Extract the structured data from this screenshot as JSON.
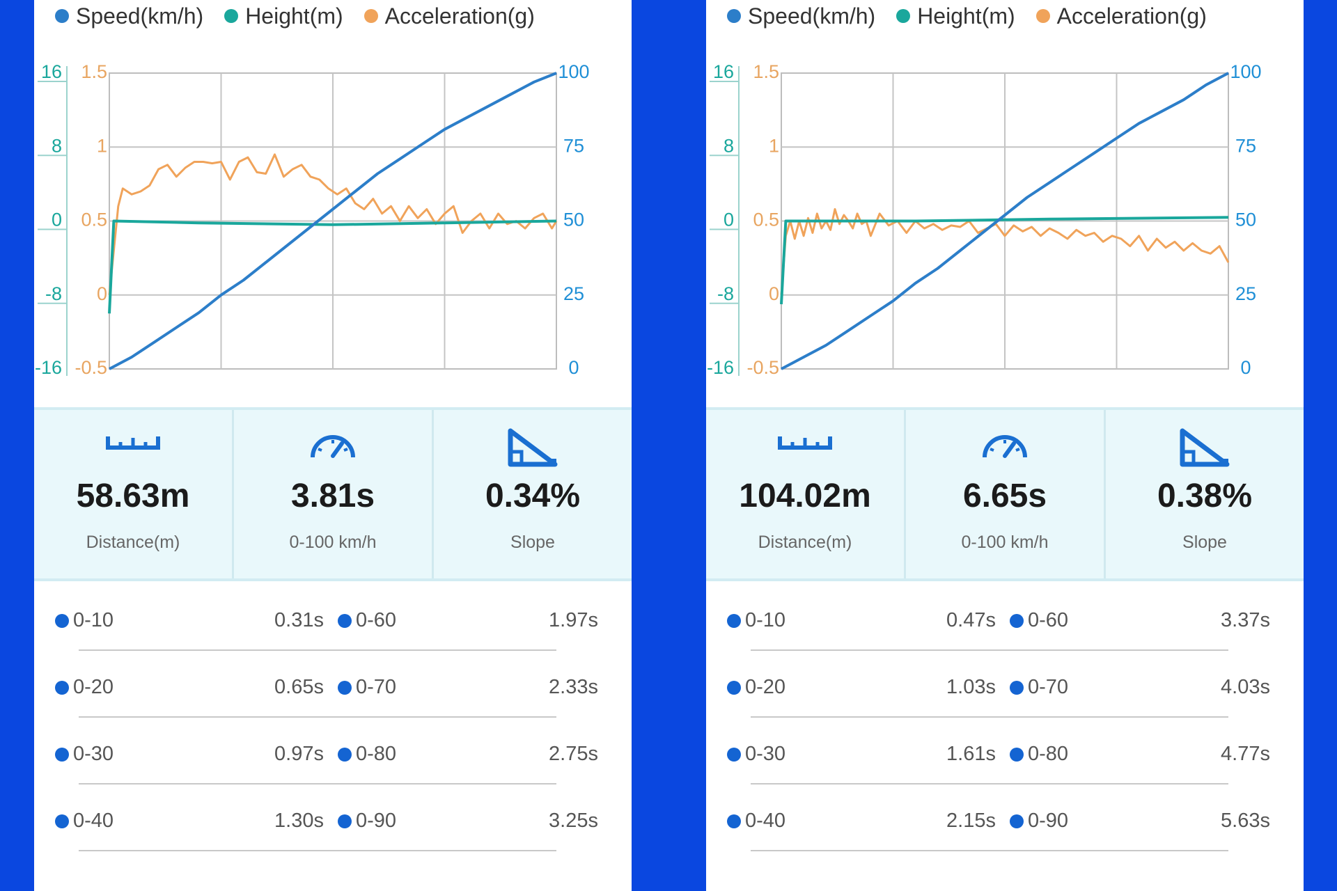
{
  "colors": {
    "speed": "#2c7ec9",
    "height": "#1aa79c",
    "acceleration": "#f0a35a",
    "axis_left_height": "#1aa79c",
    "axis_left_accel": "#e8a561",
    "axis_right_speed": "#1f8fd6",
    "split_dot": "#1464d2",
    "icon": "#1a6fd1"
  },
  "panels": [
    {
      "legend": {
        "speed": "Speed(km/h)",
        "height": "Height(m)",
        "acceleration": "Acceleration(g)"
      },
      "chart_data": {
        "type": "line",
        "title": "",
        "axes": {
          "height_ticks": [
            "16",
            "8",
            "0",
            "-8",
            "-16"
          ],
          "accel_ticks": [
            "1.5",
            "1",
            "0.5",
            "0",
            "-0.5"
          ],
          "speed_ticks": [
            "100",
            "75",
            "50",
            "25",
            "0"
          ],
          "height_range": [
            -16,
            16
          ],
          "accel_range": [
            -0.5,
            1.5
          ],
          "speed_range": [
            0,
            100
          ]
        },
        "grid": true,
        "series": [
          {
            "name": "Speed(km/h)",
            "axis": "right",
            "x": [
              0,
              0.05,
              0.1,
              0.15,
              0.2,
              0.25,
              0.3,
              0.35,
              0.4,
              0.45,
              0.5,
              0.55,
              0.6,
              0.65,
              0.7,
              0.75,
              0.8,
              0.85,
              0.9,
              0.95,
              1.0
            ],
            "values": [
              0,
              4,
              9,
              14,
              19,
              25,
              30,
              36,
              42,
              48,
              54,
              60,
              66,
              71,
              76,
              81,
              85,
              89,
              93,
              97,
              100
            ]
          },
          {
            "name": "Height(m)",
            "axis": "left-height",
            "x": [
              0,
              0.01,
              0.2,
              0.5,
              0.75,
              1.0
            ],
            "values": [
              -10,
              0,
              -0.2,
              -0.4,
              -0.2,
              0
            ]
          },
          {
            "name": "Acceleration(g)",
            "axis": "left-accel",
            "x": [
              0,
              0.01,
              0.02,
              0.03,
              0.05,
              0.07,
              0.09,
              0.11,
              0.13,
              0.15,
              0.17,
              0.19,
              0.21,
              0.23,
              0.25,
              0.27,
              0.29,
              0.31,
              0.33,
              0.35,
              0.37,
              0.39,
              0.41,
              0.43,
              0.45,
              0.47,
              0.49,
              0.51,
              0.53,
              0.55,
              0.57,
              0.59,
              0.61,
              0.63,
              0.65,
              0.67,
              0.69,
              0.71,
              0.73,
              0.75,
              0.77,
              0.79,
              0.81,
              0.83,
              0.85,
              0.87,
              0.89,
              0.91,
              0.93,
              0.95,
              0.97,
              0.99,
              1.0
            ],
            "values": [
              0,
              0.3,
              0.6,
              0.72,
              0.68,
              0.7,
              0.74,
              0.85,
              0.88,
              0.8,
              0.86,
              0.9,
              0.9,
              0.89,
              0.9,
              0.78,
              0.9,
              0.93,
              0.83,
              0.82,
              0.95,
              0.8,
              0.85,
              0.88,
              0.8,
              0.78,
              0.72,
              0.68,
              0.72,
              0.62,
              0.58,
              0.65,
              0.55,
              0.6,
              0.5,
              0.6,
              0.52,
              0.58,
              0.48,
              0.55,
              0.6,
              0.42,
              0.5,
              0.55,
              0.45,
              0.55,
              0.48,
              0.5,
              0.45,
              0.52,
              0.55,
              0.45,
              0.5
            ]
          }
        ]
      },
      "stats": [
        {
          "icon": "ruler-icon",
          "value": "58.63m",
          "label": "Distance(m)"
        },
        {
          "icon": "speedometer-icon",
          "value": "3.81s",
          "label": "0-100 km/h"
        },
        {
          "icon": "slope-icon",
          "value": "0.34%",
          "label": "Slope"
        }
      ],
      "splits": [
        {
          "a_range": "0-10",
          "a_time": "0.31s",
          "b_range": "0-60",
          "b_time": "1.97s"
        },
        {
          "a_range": "0-20",
          "a_time": "0.65s",
          "b_range": "0-70",
          "b_time": "2.33s"
        },
        {
          "a_range": "0-30",
          "a_time": "0.97s",
          "b_range": "0-80",
          "b_time": "2.75s"
        },
        {
          "a_range": "0-40",
          "a_time": "1.30s",
          "b_range": "0-90",
          "b_time": "3.25s"
        }
      ]
    },
    {
      "legend": {
        "speed": "Speed(km/h)",
        "height": "Height(m)",
        "acceleration": "Acceleration(g)"
      },
      "chart_data": {
        "type": "line",
        "title": "",
        "axes": {
          "height_ticks": [
            "16",
            "8",
            "0",
            "-8",
            "-16"
          ],
          "accel_ticks": [
            "1.5",
            "1",
            "0.5",
            "0",
            "-0.5"
          ],
          "speed_ticks": [
            "100",
            "75",
            "50",
            "25",
            "0"
          ],
          "height_range": [
            -16,
            16
          ],
          "accel_range": [
            -0.5,
            1.5
          ],
          "speed_range": [
            0,
            100
          ]
        },
        "grid": true,
        "series": [
          {
            "name": "Speed(km/h)",
            "axis": "right",
            "x": [
              0,
              0.05,
              0.1,
              0.15,
              0.2,
              0.25,
              0.3,
              0.35,
              0.4,
              0.45,
              0.5,
              0.55,
              0.6,
              0.65,
              0.7,
              0.75,
              0.8,
              0.85,
              0.9,
              0.95,
              1.0
            ],
            "values": [
              0,
              4,
              8,
              13,
              18,
              23,
              29,
              34,
              40,
              46,
              52,
              58,
              63,
              68,
              73,
              78,
              83,
              87,
              91,
              96,
              100
            ]
          },
          {
            "name": "Height(m)",
            "axis": "left-height",
            "x": [
              0,
              0.01,
              0.3,
              0.6,
              1.0
            ],
            "values": [
              -9,
              0,
              0,
              0.2,
              0.4
            ]
          },
          {
            "name": "Acceleration(g)",
            "axis": "left-accel",
            "x": [
              0,
              0.01,
              0.02,
              0.03,
              0.04,
              0.05,
              0.06,
              0.07,
              0.08,
              0.09,
              0.1,
              0.11,
              0.12,
              0.13,
              0.14,
              0.15,
              0.16,
              0.17,
              0.18,
              0.19,
              0.2,
              0.22,
              0.24,
              0.26,
              0.28,
              0.3,
              0.32,
              0.34,
              0.36,
              0.38,
              0.4,
              0.42,
              0.44,
              0.46,
              0.48,
              0.5,
              0.52,
              0.54,
              0.56,
              0.58,
              0.6,
              0.62,
              0.64,
              0.66,
              0.68,
              0.7,
              0.72,
              0.74,
              0.76,
              0.78,
              0.8,
              0.82,
              0.84,
              0.86,
              0.88,
              0.9,
              0.92,
              0.94,
              0.96,
              0.98,
              1.0
            ],
            "values": [
              0,
              0.4,
              0.5,
              0.38,
              0.5,
              0.4,
              0.52,
              0.42,
              0.55,
              0.45,
              0.5,
              0.44,
              0.58,
              0.48,
              0.54,
              0.5,
              0.45,
              0.55,
              0.48,
              0.5,
              0.4,
              0.55,
              0.47,
              0.5,
              0.42,
              0.5,
              0.45,
              0.48,
              0.44,
              0.47,
              0.46,
              0.5,
              0.42,
              0.45,
              0.48,
              0.4,
              0.47,
              0.43,
              0.46,
              0.4,
              0.45,
              0.42,
              0.38,
              0.44,
              0.4,
              0.42,
              0.36,
              0.4,
              0.38,
              0.33,
              0.4,
              0.3,
              0.38,
              0.32,
              0.36,
              0.3,
              0.35,
              0.3,
              0.28,
              0.33,
              0.22
            ]
          }
        ]
      },
      "stats": [
        {
          "icon": "ruler-icon",
          "value": "104.02m",
          "label": "Distance(m)"
        },
        {
          "icon": "speedometer-icon",
          "value": "6.65s",
          "label": "0-100 km/h"
        },
        {
          "icon": "slope-icon",
          "value": "0.38%",
          "label": "Slope"
        }
      ],
      "splits": [
        {
          "a_range": "0-10",
          "a_time": "0.47s",
          "b_range": "0-60",
          "b_time": "3.37s"
        },
        {
          "a_range": "0-20",
          "a_time": "1.03s",
          "b_range": "0-70",
          "b_time": "4.03s"
        },
        {
          "a_range": "0-30",
          "a_time": "1.61s",
          "b_range": "0-80",
          "b_time": "4.77s"
        },
        {
          "a_range": "0-40",
          "a_time": "2.15s",
          "b_range": "0-90",
          "b_time": "5.63s"
        }
      ]
    }
  ]
}
